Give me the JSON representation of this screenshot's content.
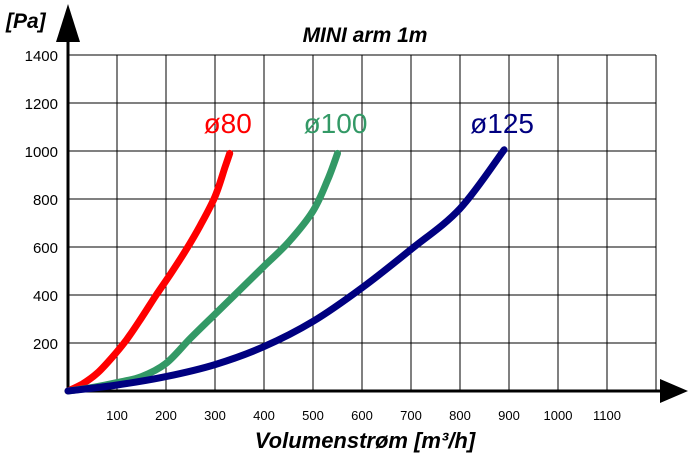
{
  "chart_data": {
    "type": "line",
    "title": "MINI arm 1m",
    "ylabel": "[Pa]",
    "xlabel": "Volumenstrøm [m³/h]",
    "xlim": [
      0,
      1200
    ],
    "ylim": [
      0,
      1400
    ],
    "x_ticks": [
      100,
      200,
      300,
      400,
      500,
      600,
      700,
      800,
      900,
      1000,
      1100
    ],
    "y_ticks": [
      200,
      400,
      600,
      800,
      1000,
      1200,
      1400
    ],
    "grid": true,
    "series": [
      {
        "name": "ø80",
        "color": "#ff0000",
        "x": [
          0,
          30,
          60,
          90,
          120,
          150,
          180,
          210,
          240,
          270,
          300,
          320,
          330
        ],
        "y": [
          0,
          30,
          75,
          140,
          215,
          305,
          400,
          490,
          585,
          690,
          810,
          930,
          990
        ]
      },
      {
        "name": "ø100",
        "color": "#339966",
        "x": [
          0,
          50,
          100,
          150,
          200,
          250,
          300,
          350,
          400,
          450,
          500,
          530,
          550
        ],
        "y": [
          0,
          15,
          35,
          60,
          115,
          220,
          320,
          420,
          520,
          620,
          750,
          880,
          990
        ]
      },
      {
        "name": "ø125",
        "color": "#000080",
        "x": [
          0,
          100,
          200,
          300,
          400,
          500,
          600,
          700,
          800,
          890
        ],
        "y": [
          0,
          25,
          60,
          110,
          185,
          290,
          430,
          590,
          760,
          1005
        ]
      }
    ]
  }
}
